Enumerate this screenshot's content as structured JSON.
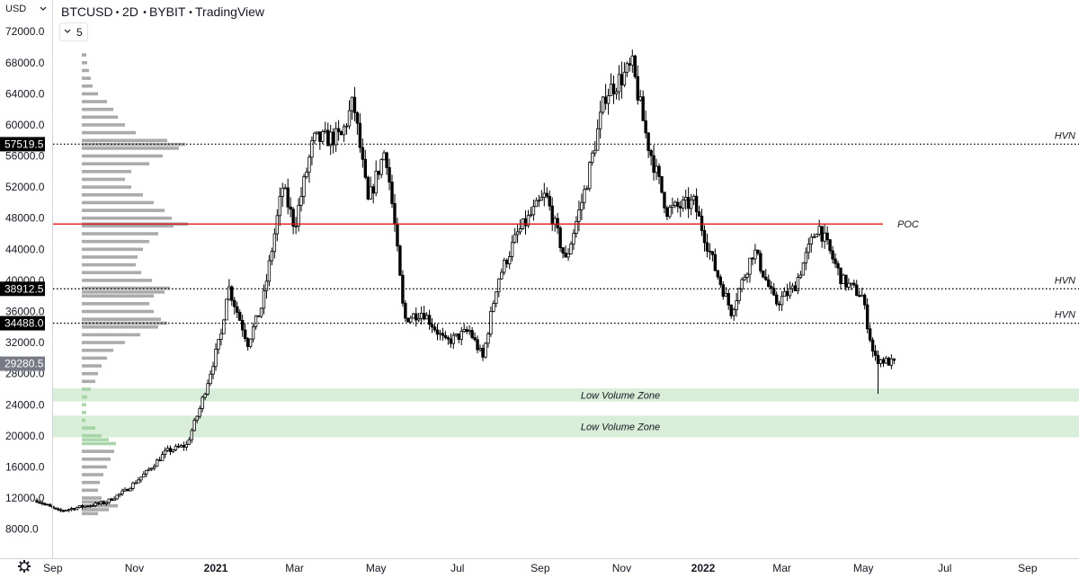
{
  "header": {
    "currency": "USD",
    "title_parts": [
      "BTCUSD",
      "2D",
      "BYBIT",
      "TradingView"
    ],
    "interval_button": "5"
  },
  "chart_data": {
    "type": "candlestick",
    "symbol": "BTCUSD",
    "y_ticks": [
      "72000.0",
      "68000.0",
      "64000.0",
      "60000.0",
      "56000.0",
      "52000.0",
      "48000.0",
      "44000.0",
      "40000.0",
      "36000.0",
      "32000.0",
      "28000.0",
      "24000.0",
      "20000.0",
      "16000.0",
      "12000.0",
      "8000.0"
    ],
    "y_tick_values": [
      72000,
      68000,
      64000,
      60000,
      56000,
      52000,
      48000,
      44000,
      40000,
      36000,
      32000,
      28000,
      24000,
      20000,
      16000,
      12000,
      8000
    ],
    "ylim": [
      4000,
      74400
    ],
    "x_ticks": [
      "Sep",
      "Nov",
      "2021",
      "Mar",
      "May",
      "Jul",
      "Sep",
      "Nov",
      "2022",
      "Mar",
      "May",
      "Jul",
      "Sep"
    ],
    "x_tick_dates": [
      "2020-09-01",
      "2020-11-01",
      "2021-01-01",
      "2021-03-01",
      "2021-05-01",
      "2021-07-01",
      "2021-09-01",
      "2021-11-01",
      "2022-01-01",
      "2022-03-01",
      "2022-05-01",
      "2022-07-01",
      "2022-09-01"
    ],
    "bold_x_ticks": [
      "2021",
      "2022"
    ],
    "price_labels": [
      {
        "text": "57519.5",
        "value": 57519.5,
        "color": "#000000"
      },
      {
        "text": "38912.5",
        "value": 38912.5,
        "color": "#000000"
      },
      {
        "text": "34488.0",
        "value": 34488.0,
        "color": "#000000"
      },
      {
        "text": "29280.5",
        "value": 29280.5,
        "color": "#787b86"
      }
    ],
    "levels": [
      {
        "label": "HVN",
        "value": 57519.5,
        "style": "dotted",
        "color": "#000000"
      },
      {
        "label": "POC",
        "value": 47250,
        "style": "solid",
        "color": "#e01414"
      },
      {
        "label": "HVN",
        "value": 38912.5,
        "style": "dotted",
        "color": "#000000"
      },
      {
        "label": "HVN",
        "value": 34488.0,
        "style": "dotted",
        "color": "#000000"
      }
    ],
    "zones": [
      {
        "label": "Low Volume Zone",
        "from": 24400,
        "to": 26100,
        "color": "#d8eed8"
      },
      {
        "label": "Low Volume Zone",
        "from": 19800,
        "to": 22600,
        "color": "#d8eed8"
      }
    ],
    "path_key": [
      [
        "2020-08-20",
        11700
      ],
      [
        "2020-09-05",
        10300
      ],
      [
        "2020-09-20",
        10800
      ],
      [
        "2020-10-10",
        11400
      ],
      [
        "2020-10-25",
        12900
      ],
      [
        "2020-11-10",
        15300
      ],
      [
        "2020-11-25",
        18000
      ],
      [
        "2020-12-10",
        18800
      ],
      [
        "2020-12-20",
        23500
      ],
      [
        "2021-01-05",
        33000
      ],
      [
        "2021-01-10",
        39500
      ],
      [
        "2021-01-25",
        32000
      ],
      [
        "2021-02-05",
        37000
      ],
      [
        "2021-02-20",
        52000
      ],
      [
        "2021-03-01",
        47000
      ],
      [
        "2021-03-15",
        58000
      ],
      [
        "2021-04-05",
        58500
      ],
      [
        "2021-04-14",
        63000
      ],
      [
        "2021-04-25",
        50000
      ],
      [
        "2021-05-08",
        57000
      ],
      [
        "2021-05-15",
        47000
      ],
      [
        "2021-05-22",
        35000
      ],
      [
        "2021-06-05",
        36000
      ],
      [
        "2021-06-22",
        32000
      ],
      [
        "2021-07-10",
        33500
      ],
      [
        "2021-07-20",
        30000
      ],
      [
        "2021-07-31",
        40000
      ],
      [
        "2021-08-15",
        46000
      ],
      [
        "2021-09-05",
        51000
      ],
      [
        "2021-09-20",
        42500
      ],
      [
        "2021-10-05",
        52000
      ],
      [
        "2021-10-20",
        64000
      ],
      [
        "2021-11-09",
        67500
      ],
      [
        "2021-11-20",
        58000
      ],
      [
        "2021-12-05",
        49000
      ],
      [
        "2021-12-25",
        50000
      ],
      [
        "2022-01-10",
        41500
      ],
      [
        "2022-01-22",
        36000
      ],
      [
        "2022-02-08",
        44000
      ],
      [
        "2022-02-24",
        37000
      ],
      [
        "2022-03-10",
        39000
      ],
      [
        "2022-03-28",
        47200
      ],
      [
        "2022-04-15",
        40000
      ],
      [
        "2022-04-30",
        38000
      ],
      [
        "2022-05-09",
        30000
      ],
      [
        "2022-05-24",
        29300
      ]
    ],
    "volume_profile": {
      "position": "left",
      "color": "#9c9c9c",
      "bins": [
        [
          69000,
          5
        ],
        [
          68000,
          6
        ],
        [
          67000,
          8
        ],
        [
          66000,
          10
        ],
        [
          65000,
          12
        ],
        [
          64000,
          18
        ],
        [
          63000,
          28
        ],
        [
          62000,
          35
        ],
        [
          61000,
          40
        ],
        [
          60000,
          48
        ],
        [
          59000,
          60
        ],
        [
          58000,
          95
        ],
        [
          57500,
          115
        ],
        [
          57000,
          108
        ],
        [
          56000,
          90
        ],
        [
          55000,
          75
        ],
        [
          54000,
          55
        ],
        [
          53000,
          48
        ],
        [
          52000,
          55
        ],
        [
          51000,
          68
        ],
        [
          50000,
          80
        ],
        [
          49000,
          92
        ],
        [
          48000,
          100
        ],
        [
          47250,
          118
        ],
        [
          47000,
          102
        ],
        [
          46000,
          85
        ],
        [
          45000,
          75
        ],
        [
          44000,
          68
        ],
        [
          43000,
          62
        ],
        [
          42000,
          60
        ],
        [
          41000,
          66
        ],
        [
          40000,
          78
        ],
        [
          39000,
          98
        ],
        [
          38500,
          92
        ],
        [
          38000,
          80
        ],
        [
          37000,
          75
        ],
        [
          36000,
          80
        ],
        [
          35000,
          88
        ],
        [
          34500,
          95
        ],
        [
          34000,
          85
        ],
        [
          33000,
          65
        ],
        [
          32000,
          48
        ],
        [
          31000,
          35
        ],
        [
          30000,
          28
        ],
        [
          29000,
          22
        ],
        [
          28000,
          18
        ],
        [
          27000,
          15
        ],
        [
          26000,
          10
        ],
        [
          25000,
          6
        ],
        [
          24000,
          5
        ],
        [
          23000,
          5
        ],
        [
          22000,
          4
        ],
        [
          21000,
          15
        ],
        [
          20000,
          22
        ],
        [
          19500,
          30
        ],
        [
          19000,
          38
        ],
        [
          18000,
          36
        ],
        [
          17000,
          32
        ],
        [
          16000,
          28
        ],
        [
          15000,
          24
        ],
        [
          14000,
          20
        ],
        [
          13000,
          18
        ],
        [
          12000,
          22
        ],
        [
          11500,
          28
        ],
        [
          11000,
          40
        ],
        [
          10500,
          30
        ],
        [
          10000,
          18
        ]
      ]
    }
  }
}
